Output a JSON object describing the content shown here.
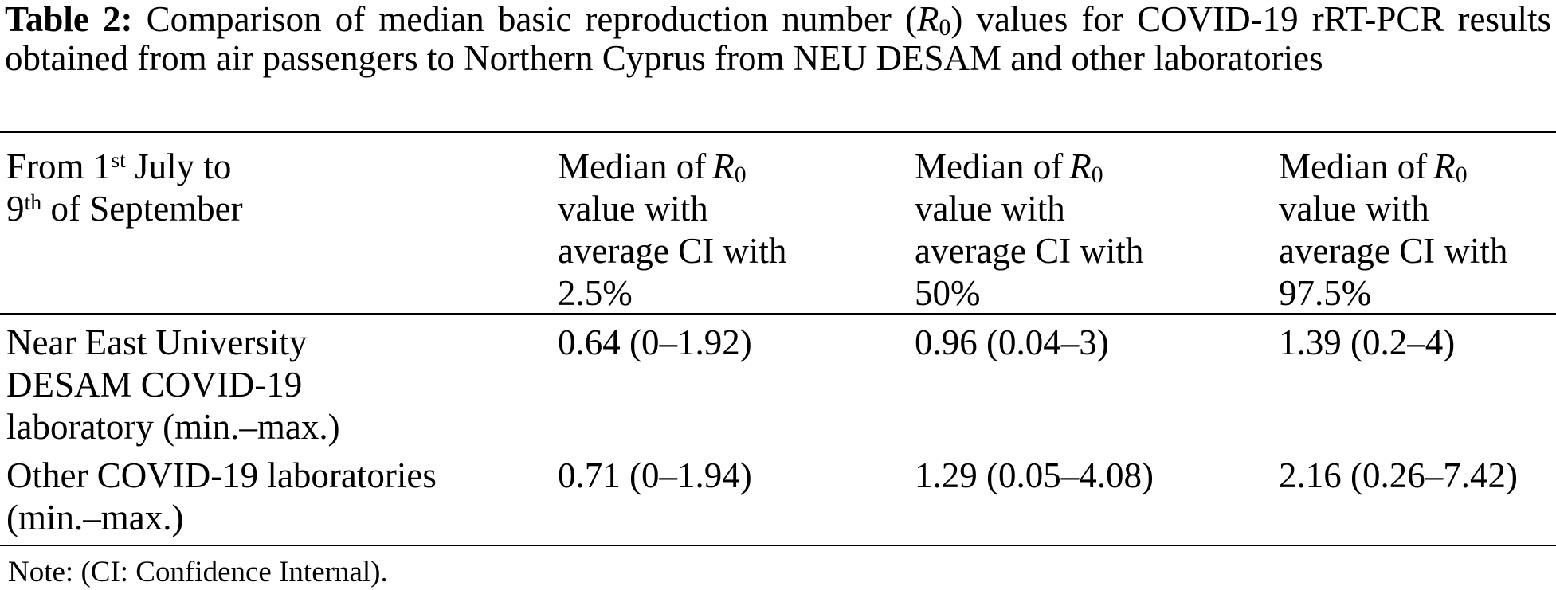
{
  "caption": {
    "label": "Table 2:",
    "segment_before_r": " Comparison of median basic reproduction number (",
    "r_symbol": "R",
    "r_subscript": "0",
    "segment_after_r": ") values for COVID-19 rRT-PCR results obtained from air passengers to Northern Cyprus from NEU DESAM and other laboratories"
  },
  "table": {
    "header": {
      "period": {
        "line1": {
          "pre": "From 1",
          "sup": "st",
          "post": " July to"
        },
        "line2": {
          "pre": "9",
          "sup": "th",
          "post": " of September"
        }
      },
      "metrics": [
        {
          "line1_pre": "Median of",
          "r": "R",
          "r_sub": "0",
          "line2": "value with",
          "line3": "average CI with",
          "line4": "2.5%"
        },
        {
          "line1_pre": "Median of",
          "r": "R",
          "r_sub": "0",
          "line2": "value with",
          "line3": "average CI with",
          "line4": "50%"
        },
        {
          "line1_pre": "Median of",
          "r": "R",
          "r_sub": "0",
          "line2": "value with",
          "line3": "average CI with",
          "line4": "97.5%"
        }
      ]
    },
    "rows": [
      {
        "label_lines": [
          "Near East University",
          "DESAM COVID-19",
          "laboratory (min.–max.)"
        ],
        "values": [
          "0.64 (0–1.92)",
          "0.96 (0.04–3)",
          "1.39 (0.2–4)"
        ]
      },
      {
        "label_lines": [
          "Other COVID-19 laboratories",
          "(min.–max.)"
        ],
        "values": [
          "0.71 (0–1.94)",
          "1.29 (0.05–4.08)",
          "2.16 (0.26–7.42)"
        ]
      }
    ]
  },
  "note": "Note: (CI: Confidence Internal).",
  "colors": {
    "text": "#000000",
    "background": "#ffffff",
    "rule": "#000000"
  }
}
